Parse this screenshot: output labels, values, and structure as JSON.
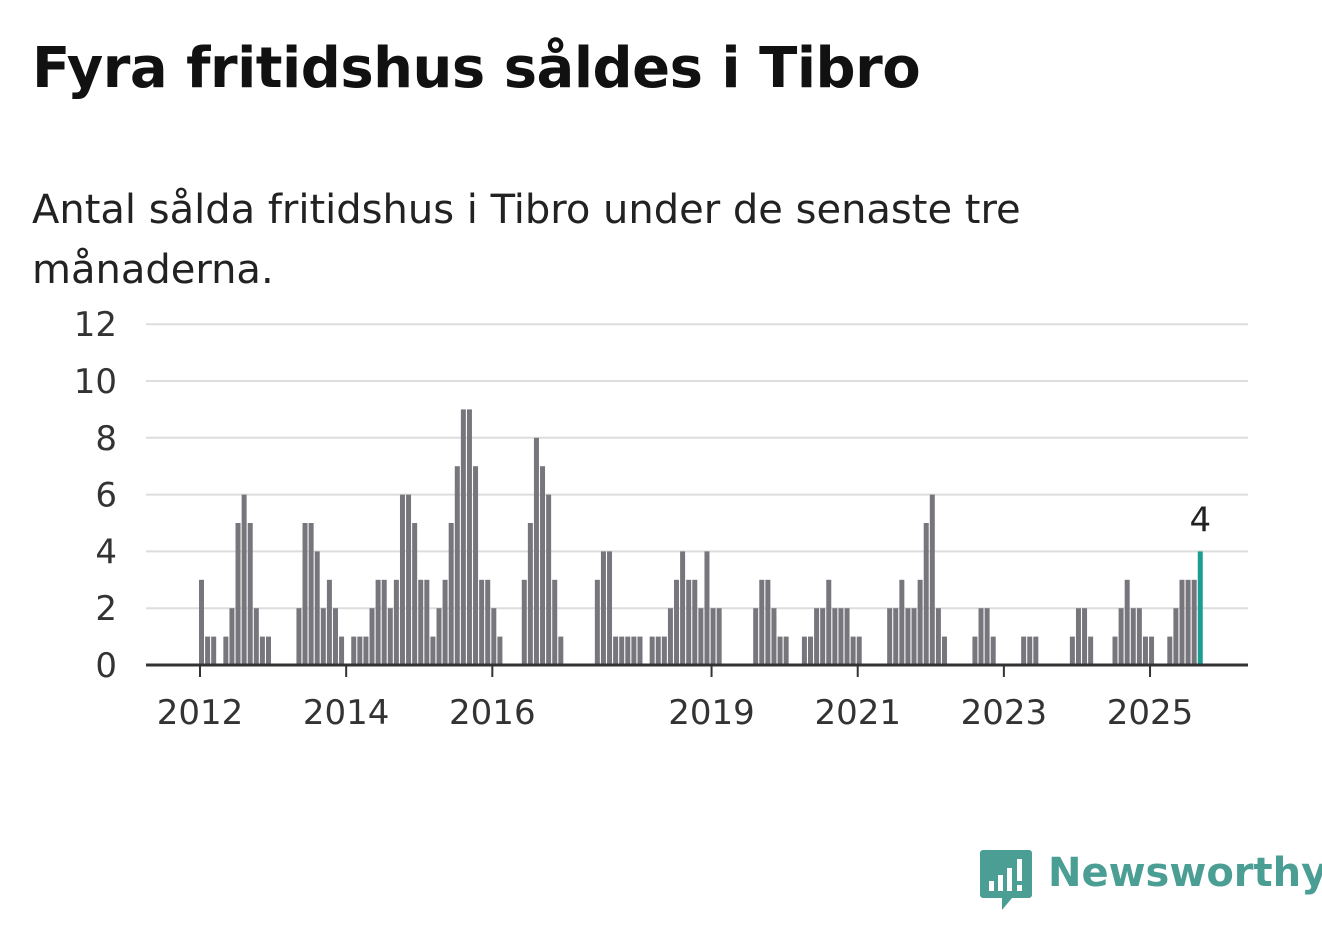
{
  "title": "Fyra fritidshus såldes i Tibro",
  "subtitle": "Antal sålda fritidshus i Tibro under de senaste tre månaderna.",
  "brand": {
    "name": "Newsworthy",
    "color": "#4a9e94",
    "icon": "bar-chart-speech-bubble-icon"
  },
  "colors": {
    "bar": "#77767c",
    "highlight": "#1a9e92",
    "grid": "#dddddd",
    "axis": "#333333"
  },
  "chart_data": {
    "type": "bar",
    "title": "Fyra fritidshus såldes i Tibro",
    "subtitle": "Antal sålda fritidshus i Tibro under de senaste tre månaderna.",
    "xlabel": "",
    "ylabel": "",
    "ylim": [
      0,
      12
    ],
    "yticks": [
      0,
      2,
      4,
      6,
      8,
      10,
      12
    ],
    "xticks": [
      {
        "label": "2012",
        "year": 2012
      },
      {
        "label": "2014",
        "year": 2014
      },
      {
        "label": "2016",
        "year": 2016
      },
      {
        "label": "2019",
        "year": 2019
      },
      {
        "label": "2021",
        "year": 2021
      },
      {
        "label": "2023",
        "year": 2023
      },
      {
        "label": "2025",
        "year": 2025
      }
    ],
    "grid": true,
    "x_start": "2012-01",
    "frequency": "monthly",
    "values": [
      3,
      1,
      1,
      0,
      1,
      2,
      5,
      6,
      5,
      2,
      1,
      1,
      0,
      0,
      0,
      0,
      2,
      5,
      5,
      4,
      2,
      3,
      2,
      1,
      0,
      1,
      1,
      1,
      2,
      3,
      3,
      2,
      3,
      6,
      6,
      5,
      3,
      3,
      1,
      2,
      3,
      5,
      7,
      9,
      9,
      7,
      3,
      3,
      2,
      1,
      0,
      0,
      0,
      3,
      5,
      8,
      7,
      6,
      3,
      1,
      0,
      0,
      0,
      0,
      0,
      3,
      4,
      4,
      1,
      1,
      1,
      1,
      1,
      0,
      1,
      1,
      1,
      2,
      3,
      4,
      3,
      3,
      2,
      4,
      2,
      2,
      0,
      0,
      0,
      0,
      0,
      2,
      3,
      3,
      2,
      1,
      1,
      0,
      0,
      1,
      1,
      2,
      2,
      3,
      2,
      2,
      2,
      1,
      1,
      0,
      0,
      0,
      0,
      2,
      2,
      3,
      2,
      2,
      3,
      5,
      6,
      2,
      1,
      0,
      0,
      0,
      0,
      1,
      2,
      2,
      1,
      0,
      0,
      0,
      0,
      1,
      1,
      1,
      0,
      0,
      0,
      0,
      0,
      1,
      2,
      2,
      1,
      0,
      0,
      0,
      1,
      2,
      3,
      2,
      2,
      1,
      1,
      0,
      0,
      1,
      2,
      3,
      3,
      3,
      4
    ],
    "highlight": {
      "date": "2025-09",
      "value": 4,
      "label": "4"
    }
  }
}
